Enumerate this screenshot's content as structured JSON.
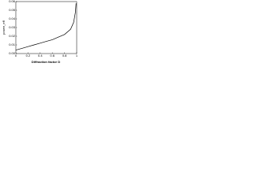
{
  "chart_data": {
    "type": "line",
    "x_label": "Diffraction factor D",
    "y_label": "power_eff",
    "x": [
      0,
      0.1,
      0.2,
      0.3,
      0.4,
      0.5,
      0.6,
      0.7,
      0.8,
      0.9,
      0.95,
      0.98,
      0.99
    ],
    "series": [
      {
        "name": "power_eff",
        "color": "#000000",
        "values": [
          0.004,
          0.006,
          0.008,
          0.01,
          0.012,
          0.014,
          0.016,
          0.019,
          0.022,
          0.028,
          0.036,
          0.048,
          0.058
        ]
      }
    ],
    "xlim": [
      0,
      1
    ],
    "xticks": [
      0,
      0.2,
      0.4,
      0.6,
      0.8,
      1
    ],
    "ylim": [
      0,
      0.06
    ],
    "yticks": [
      {
        "value": 0,
        "label": "0.00"
      },
      {
        "value": 0.01,
        "label": "0.01"
      },
      {
        "value": 0.02,
        "label": "0.02"
      },
      {
        "value": 0.03,
        "label": "0.03"
      },
      {
        "value": 0.04,
        "label": "0.04"
      },
      {
        "value": 0.05,
        "label": "0.05"
      },
      {
        "value": 0.06,
        "label": "0.06"
      }
    ]
  }
}
